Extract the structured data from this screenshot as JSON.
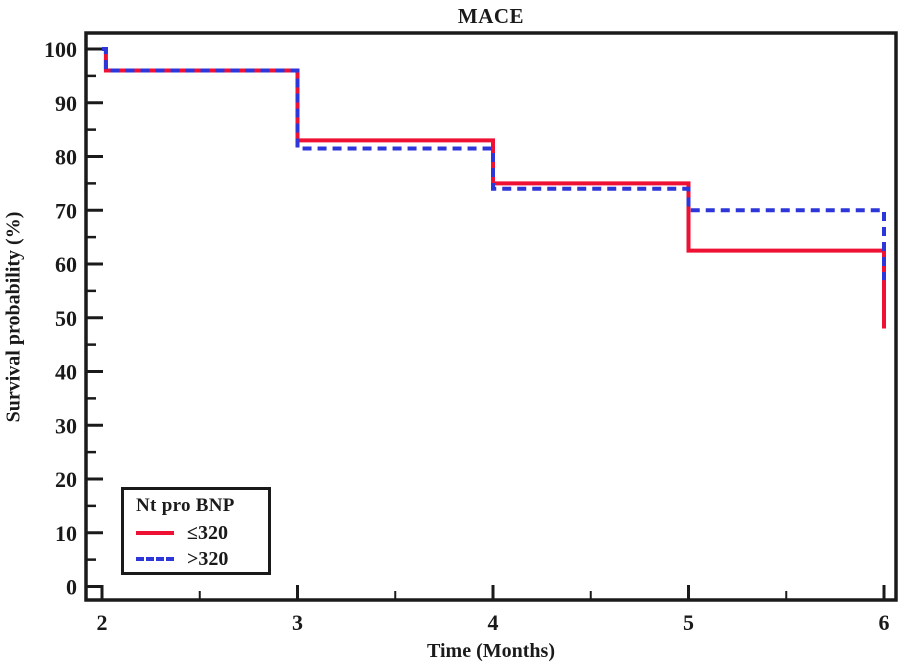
{
  "chart_data": {
    "type": "line",
    "subtype": "kaplan-meier-step",
    "title": "MACE",
    "xlabel": "Time (Months)",
    "ylabel": "Survival probability (%)",
    "xlim": [
      1.92,
      6.06
    ],
    "ylim": [
      0,
      103
    ],
    "grid": false,
    "axis_color": "#1a1a1a",
    "x_major_ticks": [
      2,
      3,
      4,
      5,
      6
    ],
    "x_minor_ticks": [
      2.5,
      3.5,
      4.5,
      5.5
    ],
    "y_major_ticks": [
      0,
      10,
      20,
      30,
      40,
      50,
      60,
      70,
      80,
      90,
      100
    ],
    "y_minor_ticks": [
      5,
      15,
      25,
      35,
      45,
      55,
      65,
      75,
      85,
      95
    ],
    "legend": {
      "title": "Nt pro BNP",
      "position": "lower-left"
    },
    "series": [
      {
        "name": "≤320",
        "color": "#ee1133",
        "style": "solid",
        "points": [
          [
            2,
            100
          ],
          [
            2.02,
            100
          ],
          [
            2.02,
            96
          ],
          [
            3,
            96
          ],
          [
            3,
            83
          ],
          [
            4,
            83
          ],
          [
            4,
            75
          ],
          [
            5,
            75
          ],
          [
            5,
            62.5
          ],
          [
            6,
            62.5
          ],
          [
            6,
            48
          ]
        ]
      },
      {
        "name": ">320",
        "color": "#2d36d8",
        "style": "dashed",
        "points": [
          [
            2,
            100
          ],
          [
            2.02,
            100
          ],
          [
            2.02,
            96
          ],
          [
            3,
            96
          ],
          [
            3,
            81.5
          ],
          [
            4,
            81.5
          ],
          [
            4,
            74
          ],
          [
            5,
            74
          ],
          [
            5,
            70
          ],
          [
            6,
            70
          ],
          [
            6,
            57
          ]
        ]
      }
    ]
  }
}
